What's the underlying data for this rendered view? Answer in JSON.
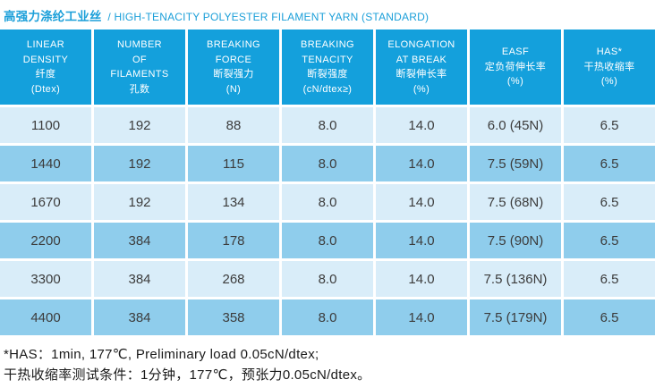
{
  "title": {
    "cn": "高强力涤纶工业丝",
    "en": "/ HIGH-TENACITY POLYESTER FILAMENT YARN (STANDARD)"
  },
  "colors": {
    "header_blue": "#14a0dc",
    "row_light": "#d9edf9",
    "row_dark": "#8fcdec",
    "title_blue": "#1b9fd9",
    "cell_text": "#3c3c3c",
    "note_text": "#1a1a1a"
  },
  "table": {
    "columns": [
      {
        "id": "linear-density",
        "lines": [
          "LINEAR",
          "DENSITY",
          "纤度",
          "(Dtex)"
        ]
      },
      {
        "id": "filaments",
        "lines": [
          "NUMBER",
          "OF",
          "FILAMENTS",
          "孔数"
        ]
      },
      {
        "id": "breaking-force",
        "lines": [
          "BREAKING",
          "FORCE",
          "断裂强力",
          "(N)"
        ]
      },
      {
        "id": "breaking-tenacity",
        "lines": [
          "BREAKING",
          "TENACITY",
          "断裂强度",
          "(cN/dtex≥)"
        ]
      },
      {
        "id": "elongation",
        "lines": [
          "ELONGATION",
          "AT BREAK",
          "断裂伸长率",
          "(%)"
        ]
      },
      {
        "id": "easf",
        "lines": [
          "EASF",
          "定负荷伸长率",
          "(%)"
        ]
      },
      {
        "id": "has",
        "lines": [
          "HAS*",
          "干热收缩率",
          "(%)"
        ]
      }
    ],
    "rows": [
      [
        "1100",
        "192",
        "88",
        "8.0",
        "14.0",
        "6.0 (45N)",
        "6.5"
      ],
      [
        "1440",
        "192",
        "115",
        "8.0",
        "14.0",
        "7.5 (59N)",
        "6.5"
      ],
      [
        "1670",
        "192",
        "134",
        "8.0",
        "14.0",
        "7.5 (68N)",
        "6.5"
      ],
      [
        "2200",
        "384",
        "178",
        "8.0",
        "14.0",
        "7.5 (90N)",
        "6.5"
      ],
      [
        "3300",
        "384",
        "268",
        "8.0",
        "14.0",
        "7.5 (136N)",
        "6.5"
      ],
      [
        "4400",
        "384",
        "358",
        "8.0",
        "14.0",
        "7.5 (179N)",
        "6.5"
      ]
    ]
  },
  "footnotes": {
    "line1": "*HAS：1min, 177℃, Preliminary load 0.05cN/dtex;",
    "line2": "干热收缩率测试条件：1分钟，177℃，预张力0.05cN/dtex。"
  }
}
